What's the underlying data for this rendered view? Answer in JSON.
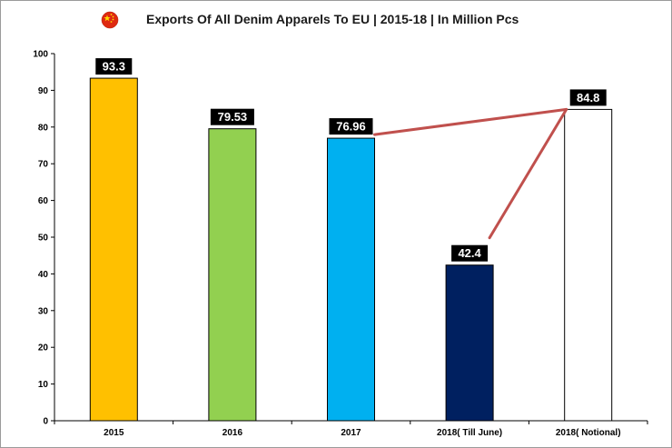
{
  "chart_data": {
    "type": "bar",
    "title": "Exports Of All Denim Apparels To EU | 2015-18 | In Million Pcs",
    "title_icon": "china-flag-icon",
    "categories": [
      "2015",
      "2016",
      "2017",
      "2018( Till June)",
      "2018( Notional)"
    ],
    "values": [
      93.3,
      79.53,
      76.96,
      42.4,
      84.8
    ],
    "value_labels": [
      "93.3",
      "79.53",
      "76.96",
      "42.4",
      "84.8"
    ],
    "bar_colors": [
      "#FFC000",
      "#92D050",
      "#00B0F0",
      "#002060",
      "#FFFFFF"
    ],
    "ylim": [
      0,
      100
    ],
    "yticks": [
      "0",
      "10",
      "20",
      "30",
      "40",
      "50",
      "60",
      "70",
      "80",
      "90",
      "100"
    ],
    "grid": false,
    "legend": "none",
    "connector_color": "#C0504D",
    "connectors": [
      {
        "from": "2017",
        "to": "2018( Notional)"
      },
      {
        "from": "2018( Till June)",
        "to": "2018( Notional)"
      }
    ]
  }
}
